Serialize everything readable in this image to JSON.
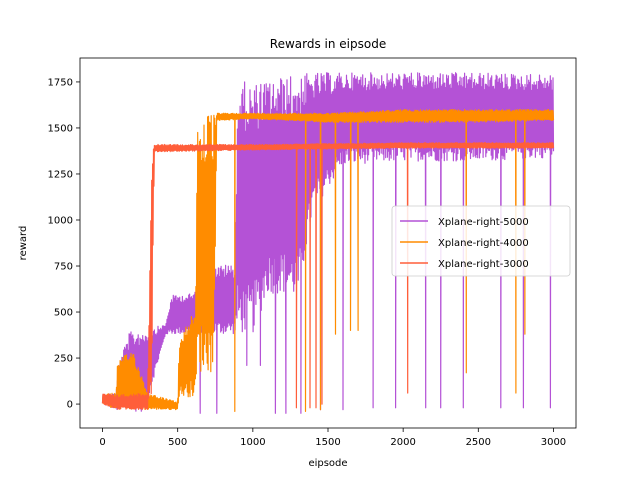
{
  "chart_data": {
    "type": "line",
    "title": "Rewards in eipsode",
    "xlabel": "eipsode",
    "ylabel": "reward",
    "xlim": [
      -150,
      3150
    ],
    "ylim": [
      -130,
      1880
    ],
    "xticks": [
      0,
      500,
      1000,
      1500,
      2000,
      2500,
      3000
    ],
    "yticks": [
      0,
      250,
      500,
      750,
      1000,
      1250,
      1500,
      1750
    ],
    "grid": false,
    "legend_position": "center-right",
    "series": [
      {
        "name": "Xplane-right-5000",
        "color": "#b452d6",
        "x_max": 3000,
        "envelope": [
          {
            "x": 0,
            "low": 0,
            "high": 55
          },
          {
            "x": 90,
            "low": -30,
            "high": 60
          },
          {
            "x": 110,
            "low": -40,
            "high": 230
          },
          {
            "x": 180,
            "low": -40,
            "high": 390
          },
          {
            "x": 280,
            "low": -40,
            "high": 410
          },
          {
            "x": 420,
            "low": 380,
            "high": 430
          },
          {
            "x": 460,
            "low": 380,
            "high": 590
          },
          {
            "x": 600,
            "low": 380,
            "high": 600
          },
          {
            "x": 700,
            "low": 380,
            "high": 750
          },
          {
            "x": 880,
            "low": 380,
            "high": 760
          },
          {
            "x": 900,
            "low": 380,
            "high": 1760
          },
          {
            "x": 1000,
            "low": 380,
            "high": 1740
          },
          {
            "x": 1100,
            "low": 600,
            "high": 1760
          },
          {
            "x": 1200,
            "low": 600,
            "high": 1780
          },
          {
            "x": 1300,
            "low": 570,
            "high": 1790
          },
          {
            "x": 1400,
            "low": 1050,
            "high": 1800
          },
          {
            "x": 1600,
            "low": 1300,
            "high": 1800
          },
          {
            "x": 2000,
            "low": 1320,
            "high": 1800
          },
          {
            "x": 2500,
            "low": 1320,
            "high": 1800
          },
          {
            "x": 3000,
            "low": 1340,
            "high": 1790
          }
        ],
        "drops": [
          {
            "x": 650,
            "y": -50
          },
          {
            "x": 760,
            "y": -50
          },
          {
            "x": 960,
            "y": 210
          },
          {
            "x": 1050,
            "y": 210
          },
          {
            "x": 1150,
            "y": -50
          },
          {
            "x": 1220,
            "y": -50
          },
          {
            "x": 1320,
            "y": -50
          },
          {
            "x": 1450,
            "y": -30
          },
          {
            "x": 1600,
            "y": -30
          },
          {
            "x": 1800,
            "y": -20
          },
          {
            "x": 1950,
            "y": -20
          },
          {
            "x": 2150,
            "y": -20
          },
          {
            "x": 2250,
            "y": -20
          },
          {
            "x": 2400,
            "y": -20
          },
          {
            "x": 2650,
            "y": -20
          },
          {
            "x": 2800,
            "y": -20
          },
          {
            "x": 2980,
            "y": -20
          }
        ]
      },
      {
        "name": "Xplane-right-4000",
        "color": "#ff8c00",
        "x_max": 3000,
        "envelope": [
          {
            "x": 0,
            "low": 0,
            "high": 55
          },
          {
            "x": 90,
            "low": -30,
            "high": 60
          },
          {
            "x": 100,
            "low": -30,
            "high": 230
          },
          {
            "x": 200,
            "low": -30,
            "high": 300
          },
          {
            "x": 300,
            "low": -30,
            "high": 60
          },
          {
            "x": 500,
            "low": -30,
            "high": 10
          },
          {
            "x": 510,
            "low": 40,
            "high": 330
          },
          {
            "x": 620,
            "low": 40,
            "high": 560
          },
          {
            "x": 630,
            "low": 170,
            "high": 1560
          },
          {
            "x": 740,
            "low": 170,
            "high": 1580
          },
          {
            "x": 760,
            "low": 1540,
            "high": 1580
          },
          {
            "x": 1000,
            "low": 1550,
            "high": 1580
          },
          {
            "x": 1500,
            "low": 1530,
            "high": 1580
          },
          {
            "x": 2000,
            "low": 1530,
            "high": 1600
          },
          {
            "x": 2500,
            "low": 1530,
            "high": 1600
          },
          {
            "x": 3000,
            "low": 1540,
            "high": 1600
          }
        ],
        "drops": [
          {
            "x": 880,
            "y": -40
          },
          {
            "x": 1350,
            "y": -40
          },
          {
            "x": 1450,
            "y": -30
          },
          {
            "x": 1550,
            "y": 380
          },
          {
            "x": 1650,
            "y": 400
          },
          {
            "x": 1700,
            "y": 400
          },
          {
            "x": 2420,
            "y": 170
          },
          {
            "x": 2750,
            "y": 60
          },
          {
            "x": 2810,
            "y": 380
          }
        ]
      },
      {
        "name": "Xplane-right-3000",
        "color": "#ff5e3a",
        "x_max": 3000,
        "envelope": [
          {
            "x": 0,
            "low": 0,
            "high": 55
          },
          {
            "x": 100,
            "low": -30,
            "high": 50
          },
          {
            "x": 300,
            "low": -30,
            "high": 60
          },
          {
            "x": 325,
            "low": -30,
            "high": 1390
          },
          {
            "x": 345,
            "low": 1370,
            "high": 1410
          },
          {
            "x": 1000,
            "low": 1380,
            "high": 1410
          },
          {
            "x": 2000,
            "low": 1390,
            "high": 1420
          },
          {
            "x": 3000,
            "low": 1390,
            "high": 1420
          }
        ],
        "drops": [
          {
            "x": 1290,
            "y": -20
          },
          {
            "x": 1380,
            "y": -20
          },
          {
            "x": 1420,
            "y": -20
          },
          {
            "x": 1460,
            "y": 0
          },
          {
            "x": 2030,
            "y": 60
          }
        ]
      }
    ]
  }
}
